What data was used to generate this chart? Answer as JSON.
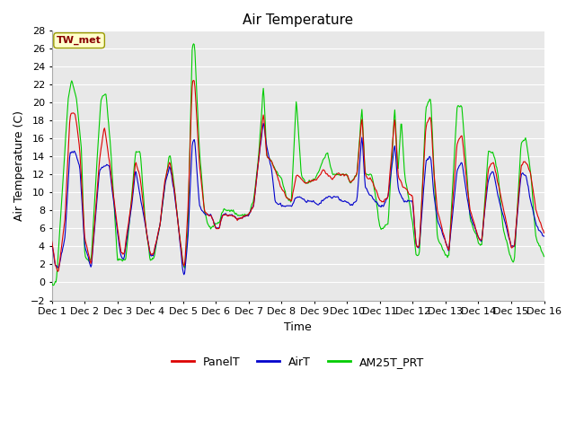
{
  "title": "Air Temperature",
  "ylabel": "Air Temperature (C)",
  "xlabel": "Time",
  "station_label": "TW_met",
  "legend": [
    "PanelT",
    "AirT",
    "AM25T_PRT"
  ],
  "legend_colors": [
    "#dd0000",
    "#0000cc",
    "#00cc00"
  ],
  "ylim": [
    -2,
    28
  ],
  "yticks": [
    -2,
    0,
    2,
    4,
    6,
    8,
    10,
    12,
    14,
    16,
    18,
    20,
    22,
    24,
    26,
    28
  ],
  "xtick_labels": [
    "Dec 1",
    "Dec 2",
    "Dec 3",
    "Dec 4",
    "Dec 5",
    "Dec 6",
    "Dec 7",
    "Dec 8",
    "Dec 9",
    "Dec 10",
    "Dec 11",
    "Dec 12",
    "Dec 13",
    "Dec 14",
    "Dec 15",
    "Dec 16"
  ],
  "background_color": "#ffffff",
  "plot_bg_color": "#e8e8e8",
  "grid_color": "#ffffff",
  "n_days": 15,
  "title_fontsize": 11,
  "label_fontsize": 9,
  "tick_fontsize": 8
}
